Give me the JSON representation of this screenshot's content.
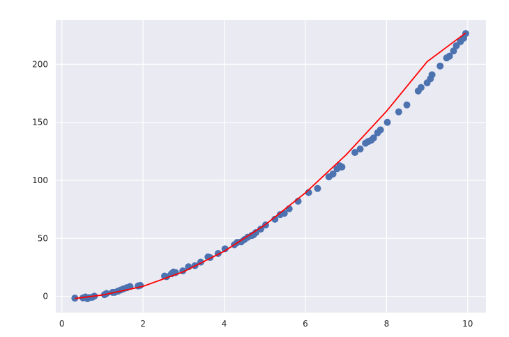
{
  "chart_data": {
    "type": "scatter",
    "title": "",
    "xlabel": "",
    "ylabel": "",
    "xlim": [
      -0.15,
      10.45
    ],
    "ylim": [
      -14,
      238
    ],
    "x_ticks": [
      0,
      2,
      4,
      6,
      8,
      10
    ],
    "y_ticks": [
      0,
      50,
      100,
      150,
      200
    ],
    "x_tick_labels": [
      "0",
      "2",
      "4",
      "6",
      "8",
      "10"
    ],
    "y_tick_labels": [
      "0",
      "50",
      "100",
      "150",
      "200"
    ],
    "grid": true,
    "legend": "none",
    "colors": {
      "background": "#eaeaf2",
      "grid": "#ffffff",
      "points": "#4c72b0",
      "fit_line": "#ff0000"
    },
    "series": [
      {
        "kind": "scatter",
        "x": [
          0.32,
          0.52,
          0.58,
          0.63,
          0.68,
          0.75,
          0.8,
          1.05,
          1.1,
          1.25,
          1.3,
          1.38,
          1.45,
          1.52,
          1.6,
          1.68,
          1.88,
          1.93,
          2.53,
          2.58,
          2.7,
          2.75,
          2.8,
          2.98,
          3.12,
          3.28,
          3.42,
          3.6,
          3.65,
          3.85,
          4.02,
          4.25,
          4.32,
          4.42,
          4.5,
          4.58,
          4.68,
          4.72,
          4.78,
          4.9,
          5.02,
          5.25,
          5.38,
          5.48,
          5.6,
          5.82,
          6.08,
          6.3,
          6.58,
          6.68,
          6.78,
          6.85,
          6.9,
          7.22,
          7.35,
          7.48,
          7.55,
          7.62,
          7.68,
          7.78,
          7.85,
          8.02,
          8.3,
          8.5,
          8.78,
          8.85,
          9.0,
          9.08,
          9.12,
          9.32,
          9.48,
          9.55,
          9.65,
          9.72,
          9.82,
          9.9,
          9.95
        ],
        "y": [
          -1.5,
          -1.3,
          -0.5,
          -2.0,
          -1.0,
          -0.8,
          0.2,
          1.5,
          2.5,
          3.5,
          3.5,
          4.5,
          5.5,
          6.5,
          7.5,
          8.5,
          9.0,
          9.5,
          17.5,
          17.0,
          19.5,
          21.0,
          20.5,
          22.0,
          25.5,
          26.5,
          29.5,
          34.0,
          33.5,
          37.0,
          41.0,
          44.5,
          46.5,
          47.0,
          49.0,
          51.0,
          52.5,
          53.0,
          55.0,
          58.0,
          61.5,
          66.5,
          70.5,
          71.5,
          75.5,
          82.0,
          89.5,
          93.0,
          103.0,
          105.5,
          110.0,
          112.5,
          111.5,
          124.0,
          127.0,
          132.0,
          133.5,
          134.5,
          136.5,
          141.0,
          143.5,
          150.0,
          159.0,
          165.0,
          177.0,
          180.0,
          184.0,
          187.5,
          191.0,
          198.5,
          205.5,
          207.0,
          211.5,
          216.0,
          219.5,
          222.5,
          226.5
        ]
      },
      {
        "kind": "line",
        "x": [
          0.32,
          1.0,
          2.0,
          3.0,
          4.0,
          5.0,
          6.0,
          7.0,
          8.0,
          9.0,
          9.95
        ],
        "y": [
          -1.8,
          1.2,
          8.7,
          21.3,
          38.9,
          61.5,
          89.2,
          121.9,
          159.6,
          202.3,
          227.0
        ]
      }
    ]
  }
}
